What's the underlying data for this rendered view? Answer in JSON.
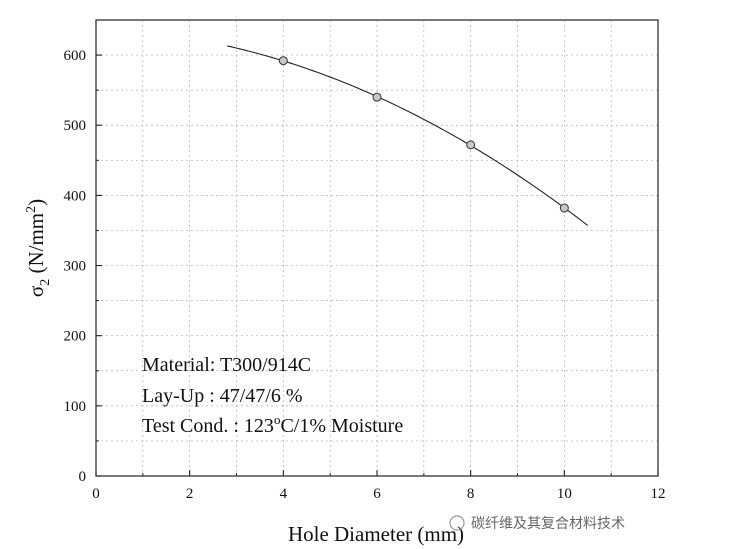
{
  "chart_data": {
    "type": "line",
    "xlabel": "Hole Diameter (mm)",
    "ylabel": {
      "base": "σ",
      "sub": "2",
      "units_pre": " (N/mm",
      "units_sup": "2",
      "units_post": ")"
    },
    "xlim": [
      0,
      12
    ],
    "ylim": [
      0,
      650
    ],
    "xticks": [
      0,
      2,
      4,
      6,
      8,
      10,
      12
    ],
    "yticks": [
      0,
      100,
      200,
      300,
      400,
      500,
      600
    ],
    "grid": true,
    "series": [
      {
        "marker": "circle",
        "points": [
          {
            "x": 4,
            "y": 592
          },
          {
            "x": 6,
            "y": 540
          },
          {
            "x": 8,
            "y": 472
          },
          {
            "x": 10,
            "y": 382
          }
        ],
        "fit_range": [
          2.8,
          10.5
        ]
      }
    ],
    "annotations": [
      {
        "text": "Material: T300/914C"
      },
      {
        "text": "Lay-Up : 47/47/6 %"
      },
      {
        "pre": "Test Cond. : 123",
        "sup": "o",
        "post": "C/1% Moisture"
      }
    ]
  },
  "watermark": {
    "text": "碳纤维及其复合材料技术"
  },
  "colors": {
    "line": "#222222",
    "marker_fill": "#c8c8c8",
    "marker_stroke": "#333333",
    "grid": "#b0b0b0"
  }
}
